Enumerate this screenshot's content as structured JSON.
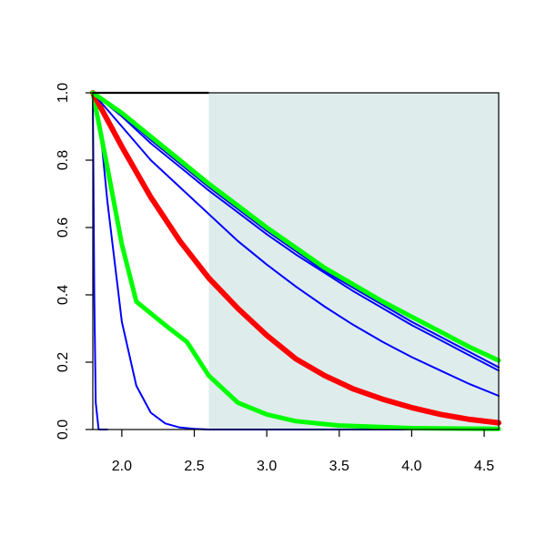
{
  "chart_data": {
    "type": "line",
    "title": "",
    "xlabel": "",
    "ylabel": "",
    "xlim": [
      1.8,
      4.6
    ],
    "ylim": [
      0.0,
      1.0
    ],
    "x_ticks": [
      2.0,
      2.5,
      3.0,
      3.5,
      4.0,
      4.5
    ],
    "x_tick_labels": [
      "2.0",
      "2.5",
      "3.0",
      "3.5",
      "4.0",
      "4.5"
    ],
    "y_ticks": [
      0.0,
      0.2,
      0.4,
      0.6,
      0.8,
      1.0
    ],
    "y_tick_labels": [
      "0.0",
      "0.2",
      "0.4",
      "0.6",
      "0.8",
      "1.0"
    ],
    "grid": false,
    "shaded_region": {
      "x_start": 2.6,
      "x_end": 4.6,
      "color": "#deecec"
    },
    "series": [
      {
        "color": "#0000ff",
        "width": 2,
        "x": [
          1.8,
          1.81,
          1.82,
          1.84,
          1.9
        ],
        "y": [
          1.0,
          0.4,
          0.08,
          0.0,
          0.0
        ]
      },
      {
        "color": "#0000ff",
        "width": 2,
        "x": [
          1.8,
          1.85,
          1.9,
          2.0,
          2.1,
          2.2,
          2.3,
          2.4,
          2.5,
          2.6,
          3.0,
          4.6
        ],
        "y": [
          1.0,
          0.9,
          0.68,
          0.32,
          0.13,
          0.05,
          0.018,
          0.006,
          0.002,
          0.0,
          0.0,
          0.0
        ]
      },
      {
        "color": "#00ff00",
        "width": 5,
        "x": [
          1.8,
          1.9,
          2.0,
          2.1,
          2.3,
          2.45,
          2.6,
          2.8,
          3.0,
          3.2,
          3.5,
          4.0,
          4.6
        ],
        "y": [
          1.0,
          0.78,
          0.55,
          0.38,
          0.31,
          0.26,
          0.16,
          0.08,
          0.045,
          0.025,
          0.012,
          0.004,
          0.002
        ]
      },
      {
        "color": "#ff0000",
        "width": 6,
        "x": [
          1.8,
          2.0,
          2.2,
          2.4,
          2.6,
          2.8,
          3.0,
          3.2,
          3.4,
          3.6,
          3.8,
          4.0,
          4.2,
          4.4,
          4.6
        ],
        "y": [
          1.0,
          0.84,
          0.69,
          0.56,
          0.45,
          0.36,
          0.28,
          0.21,
          0.16,
          0.12,
          0.09,
          0.065,
          0.045,
          0.03,
          0.02
        ]
      },
      {
        "color": "#0000ff",
        "width": 2,
        "x": [
          1.8,
          2.0,
          2.2,
          2.4,
          2.6,
          2.8,
          3.0,
          3.2,
          3.4,
          3.6,
          3.8,
          4.0,
          4.2,
          4.4,
          4.6
        ],
        "y": [
          1.0,
          0.9,
          0.8,
          0.72,
          0.64,
          0.56,
          0.49,
          0.425,
          0.365,
          0.31,
          0.26,
          0.215,
          0.175,
          0.135,
          0.1
        ]
      },
      {
        "color": "#0000ff",
        "width": 2,
        "x": [
          1.8,
          2.0,
          2.2,
          2.4,
          2.6,
          2.8,
          3.0,
          3.2,
          3.4,
          3.6,
          3.8,
          4.0,
          4.2,
          4.4,
          4.6
        ],
        "y": [
          1.0,
          0.93,
          0.85,
          0.78,
          0.71,
          0.645,
          0.58,
          0.52,
          0.465,
          0.41,
          0.36,
          0.31,
          0.265,
          0.22,
          0.175
        ]
      },
      {
        "color": "#0000ff",
        "width": 2,
        "x": [
          1.8,
          2.0,
          2.2,
          2.4,
          2.6,
          2.8,
          3.0,
          3.2,
          3.4,
          3.6,
          3.8,
          4.0,
          4.2,
          4.4,
          4.6
        ],
        "y": [
          1.0,
          0.935,
          0.86,
          0.79,
          0.72,
          0.655,
          0.59,
          0.53,
          0.47,
          0.42,
          0.37,
          0.32,
          0.275,
          0.23,
          0.185
        ]
      },
      {
        "color": "#00ff00",
        "width": 5,
        "x": [
          1.8,
          2.0,
          2.2,
          2.4,
          2.6,
          2.8,
          3.0,
          3.2,
          3.4,
          3.6,
          3.8,
          4.0,
          4.2,
          4.4,
          4.6
        ],
        "y": [
          1.0,
          0.94,
          0.87,
          0.8,
          0.73,
          0.665,
          0.6,
          0.54,
          0.48,
          0.43,
          0.38,
          0.335,
          0.29,
          0.245,
          0.205
        ]
      }
    ]
  }
}
